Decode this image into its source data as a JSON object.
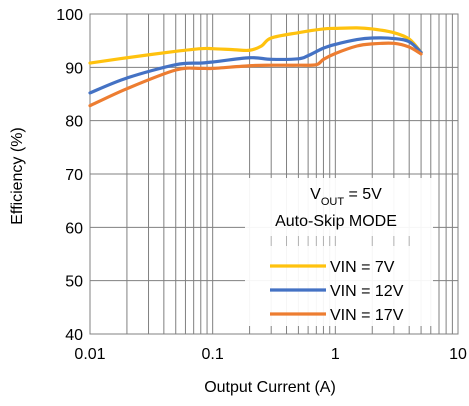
{
  "chart_data": {
    "type": "line",
    "xlabel": "Output Current (A)",
    "ylabel": "Efficiency (%)",
    "x_scale": "log",
    "xlim": [
      0.01,
      10
    ],
    "ylim": [
      40,
      100
    ],
    "x_ticks": [
      0.01,
      0.1,
      1,
      10
    ],
    "x_tick_labels": [
      "0.01",
      "0.1",
      "1",
      "10"
    ],
    "y_ticks": [
      40,
      50,
      60,
      70,
      80,
      90,
      100
    ],
    "y_tick_labels": [
      "40",
      "50",
      "60",
      "70",
      "80",
      "90",
      "100"
    ],
    "grid": true,
    "legend_position": "bottom-right",
    "annotation": {
      "line1_main": "V",
      "line1_sub": "OUT",
      "line1_rest": " = 5V",
      "line2": "Auto-Skip  MODE"
    },
    "series": [
      {
        "name": "VIN = 7V",
        "color": "#FFC20E",
        "x": [
          0.01,
          0.02,
          0.05,
          0.08,
          0.1,
          0.15,
          0.2,
          0.25,
          0.3,
          0.5,
          0.8,
          1,
          1.5,
          2,
          3,
          4,
          5
        ],
        "y": [
          90.8,
          91.8,
          93.0,
          93.5,
          93.5,
          93.3,
          93.2,
          94.0,
          95.5,
          96.5,
          97.2,
          97.3,
          97.4,
          97.2,
          96.5,
          95.3,
          92.8
        ]
      },
      {
        "name": "VIN = 12V",
        "color": "#4472C4",
        "x": [
          0.01,
          0.02,
          0.05,
          0.08,
          0.1,
          0.2,
          0.3,
          0.5,
          0.6,
          0.8,
          1,
          1.5,
          2,
          3,
          4,
          5
        ],
        "y": [
          85.2,
          88.0,
          90.5,
          90.8,
          91.0,
          91.8,
          91.5,
          91.6,
          92.2,
          93.6,
          94.3,
          95.2,
          95.5,
          95.4,
          94.8,
          92.8
        ]
      },
      {
        "name": "VIN = 17V",
        "color": "#ED7D31",
        "x": [
          0.01,
          0.02,
          0.05,
          0.08,
          0.1,
          0.2,
          0.3,
          0.5,
          0.7,
          0.8,
          1,
          1.5,
          2,
          3,
          4,
          5
        ],
        "y": [
          82.8,
          86.0,
          89.5,
          89.8,
          89.8,
          90.3,
          90.4,
          90.4,
          90.5,
          91.5,
          92.6,
          94.0,
          94.4,
          94.5,
          93.8,
          92.5
        ]
      }
    ]
  }
}
